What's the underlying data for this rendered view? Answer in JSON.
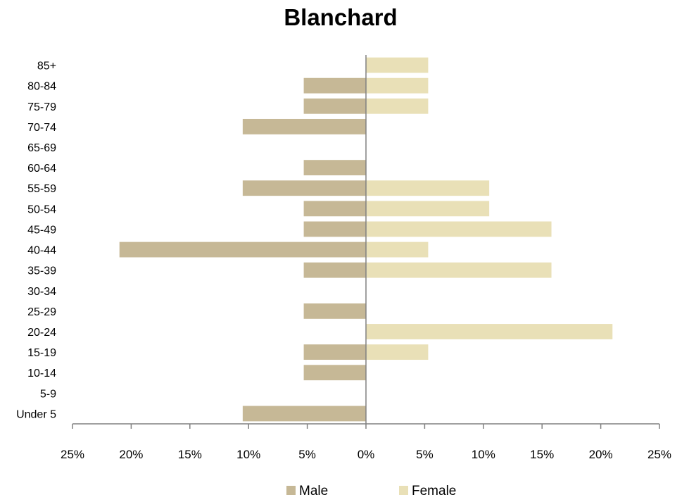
{
  "chart_data": {
    "type": "bar",
    "orientation": "horizontal",
    "title": "Blanchard",
    "xlabel": "",
    "ylabel": "",
    "categories": [
      "Under 5",
      "5-9",
      "10-14",
      "15-19",
      "20-24",
      "25-29",
      "30-34",
      "35-39",
      "40-44",
      "45-49",
      "50-54",
      "55-59",
      "60-64",
      "65-69",
      "70-74",
      "75-79",
      "80-84",
      "85+"
    ],
    "series": [
      {
        "name": "Male",
        "color": "#c6b896",
        "values": [
          10.5,
          0,
          5.3,
          5.3,
          0,
          5.3,
          0,
          5.3,
          21.0,
          5.3,
          5.3,
          10.5,
          5.3,
          0,
          10.5,
          5.3,
          5.3,
          0
        ]
      },
      {
        "name": "Female",
        "color": "#e9e0b7",
        "values": [
          0,
          0,
          0,
          5.3,
          21.0,
          0,
          0,
          15.8,
          5.3,
          15.8,
          10.5,
          10.5,
          0,
          0,
          0,
          5.3,
          5.3,
          5.3
        ]
      }
    ],
    "xlim": [
      -25,
      25
    ],
    "xticks": [
      "25%",
      "20%",
      "15%",
      "10%",
      "5%",
      "0%",
      "5%",
      "10%",
      "15%",
      "20%",
      "25%"
    ],
    "grid": false,
    "legend_position": "bottom"
  }
}
